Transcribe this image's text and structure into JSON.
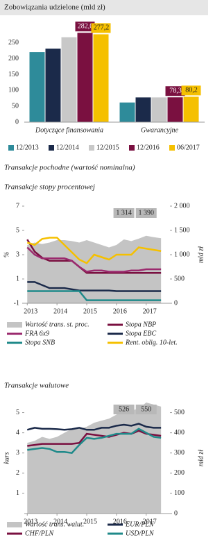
{
  "heading": "Transakcje pochodne (wartość nominalna)",
  "chart_data": [
    {
      "type": "bar",
      "title": "Zobowiązania udzielone (mld zł)",
      "categories": [
        "Dotyczące finansowania",
        "Gwarancyjne"
      ],
      "series": [
        {
          "name": "12/2013",
          "color": "#2e8b9a",
          "values": [
            221,
            62
          ]
        },
        {
          "name": "12/2014",
          "color": "#1b2a4a",
          "values": [
            232,
            78
          ]
        },
        {
          "name": "12/2015",
          "color": "#c8c8c8",
          "values": [
            268,
            78
          ]
        },
        {
          "name": "12/2016",
          "color": "#7a1040",
          "values": [
            282.0,
            78.3
          ],
          "value_labels": [
            "282,0",
            "78,3"
          ]
        },
        {
          "name": "06/2017",
          "color": "#f5c000",
          "values": [
            277.2,
            80.2
          ],
          "value_labels": [
            "277,2",
            "80,2"
          ]
        }
      ],
      "ylim": [
        0,
        300
      ],
      "yticks": [
        0,
        50,
        100,
        150,
        200,
        250
      ],
      "grid": false
    },
    {
      "type": "line",
      "title": "Transakcje stopy procentowej",
      "ylabel": "%",
      "y2label": "mld zł",
      "x": [
        2013.0,
        2013.25,
        2013.5,
        2013.75,
        2014.0,
        2014.25,
        2014.5,
        2014.75,
        2015.0,
        2015.25,
        2015.5,
        2015.75,
        2016.0,
        2016.25,
        2016.5,
        2016.75,
        2017.0,
        2017.25,
        2017.5
      ],
      "xlim": [
        2012.9,
        2017.8
      ],
      "xticks": [
        2013,
        2014,
        2015,
        2016,
        2017
      ],
      "ylim": [
        -1,
        7
      ],
      "yticks": [
        -1,
        1,
        3,
        5,
        7
      ],
      "y2lim": [
        0,
        2000
      ],
      "y2ticks": [
        0,
        500,
        {
          "value": 1000,
          "label": "1 000"
        },
        {
          "value": 1500,
          "label": "1 500"
        },
        {
          "value": 2000,
          "label": "2 000"
        }
      ],
      "series": [
        {
          "name": "Wartość trans. st. proc.",
          "kind": "area",
          "axis": "y2",
          "color": "#c4c4c4",
          "values": [
            1200,
            1250,
            1220,
            1250,
            1300,
            1300,
            1280,
            1250,
            1300,
            1250,
            1200,
            1150,
            1200,
            1314,
            1280,
            1330,
            1390,
            1360,
            1340
          ],
          "value_labels": [
            null,
            null,
            null,
            null,
            null,
            null,
            null,
            null,
            null,
            null,
            null,
            null,
            null,
            "1 314",
            null,
            null,
            "1 390",
            null,
            null
          ]
        },
        {
          "name": "Stopa NBP",
          "kind": "line",
          "color": "#7a1040",
          "values": [
            4.25,
            3.25,
            2.75,
            2.5,
            2.5,
            2.5,
            2.5,
            2.0,
            1.5,
            1.5,
            1.5,
            1.5,
            1.5,
            1.5,
            1.5,
            1.5,
            1.5,
            1.5,
            1.5
          ]
        },
        {
          "name": "FRA 6x9",
          "kind": "line",
          "color": "#9b2a6e",
          "values": [
            3.6,
            3.0,
            2.7,
            2.7,
            2.7,
            2.7,
            2.5,
            2.0,
            1.6,
            1.7,
            1.7,
            1.6,
            1.6,
            1.6,
            1.7,
            1.7,
            1.8,
            1.8,
            1.8
          ]
        },
        {
          "name": "Stopa EBC",
          "kind": "line",
          "color": "#1b2a4a",
          "values": [
            0.75,
            0.75,
            0.5,
            0.25,
            0.25,
            0.25,
            0.15,
            0.05,
            0.05,
            0.05,
            0.05,
            0.05,
            0.0,
            0.0,
            0.0,
            0.0,
            0.0,
            0.0,
            0.0
          ]
        },
        {
          "name": "Stopa SNB",
          "kind": "line",
          "color": "#1f8a8a",
          "values": [
            0,
            0,
            0,
            0,
            0,
            0,
            0,
            0,
            -0.75,
            -0.75,
            -0.75,
            -0.75,
            -0.75,
            -0.75,
            -0.75,
            -0.75,
            -0.75,
            -0.75,
            -0.75
          ]
        },
        {
          "name": "Rent. oblig. 10-let.",
          "kind": "line",
          "color": "#f5c000",
          "values": [
            4.0,
            3.8,
            4.3,
            4.4,
            4.4,
            3.8,
            3.2,
            2.6,
            2.3,
            3.0,
            2.8,
            2.6,
            3.0,
            3.0,
            3.0,
            3.6,
            3.5,
            3.4,
            3.3
          ]
        }
      ]
    },
    {
      "type": "line",
      "title": "Transakcje walutowe",
      "ylabel": "kurs",
      "y2label": "mld zł",
      "x": [
        2013.0,
        2013.25,
        2013.5,
        2013.75,
        2014.0,
        2014.25,
        2014.5,
        2014.75,
        2015.0,
        2015.25,
        2015.5,
        2015.75,
        2016.0,
        2016.25,
        2016.5,
        2016.75,
        2017.0,
        2017.25,
        2017.5
      ],
      "xlim": [
        2012.9,
        2017.8
      ],
      "xticks": [
        2013,
        2014,
        2015,
        2016,
        2017
      ],
      "ylim": [
        0,
        5.5
      ],
      "yticks": [
        1,
        2,
        3,
        4,
        5
      ],
      "y2lim": [
        0,
        550
      ],
      "y2ticks": [
        0,
        100,
        200,
        300,
        400,
        500
      ],
      "series": [
        {
          "name": "Wartość trans. walut.",
          "kind": "area",
          "axis": "y2",
          "color": "#c4c4c4",
          "values": [
            350,
            360,
            380,
            370,
            380,
            400,
            420,
            420,
            430,
            450,
            460,
            470,
            490,
            526,
            510,
            520,
            550,
            540,
            530
          ],
          "value_labels": [
            null,
            null,
            null,
            null,
            null,
            null,
            null,
            null,
            null,
            null,
            null,
            null,
            null,
            "526",
            null,
            null,
            "550",
            null,
            null
          ]
        },
        {
          "name": "EUR/PLN",
          "kind": "line",
          "color": "#1b2a4a",
          "values": [
            4.15,
            4.25,
            4.2,
            4.2,
            4.18,
            4.15,
            4.18,
            4.25,
            4.15,
            4.15,
            4.25,
            4.25,
            4.35,
            4.4,
            4.35,
            4.45,
            4.3,
            4.25,
            4.25
          ]
        },
        {
          "name": "CHF/PLN",
          "kind": "line",
          "color": "#7a1040",
          "values": [
            3.35,
            3.4,
            3.45,
            3.45,
            3.45,
            3.45,
            3.45,
            3.5,
            3.95,
            3.9,
            3.85,
            3.8,
            3.9,
            4.0,
            3.95,
            4.1,
            3.95,
            3.9,
            3.85
          ]
        },
        {
          "name": "USD/PLN",
          "kind": "line",
          "color": "#1f8a8a",
          "values": [
            3.15,
            3.2,
            3.25,
            3.2,
            3.05,
            3.05,
            3.0,
            3.4,
            3.75,
            3.7,
            3.75,
            3.85,
            3.95,
            3.95,
            3.95,
            4.2,
            4.0,
            3.8,
            3.75
          ]
        }
      ]
    }
  ]
}
